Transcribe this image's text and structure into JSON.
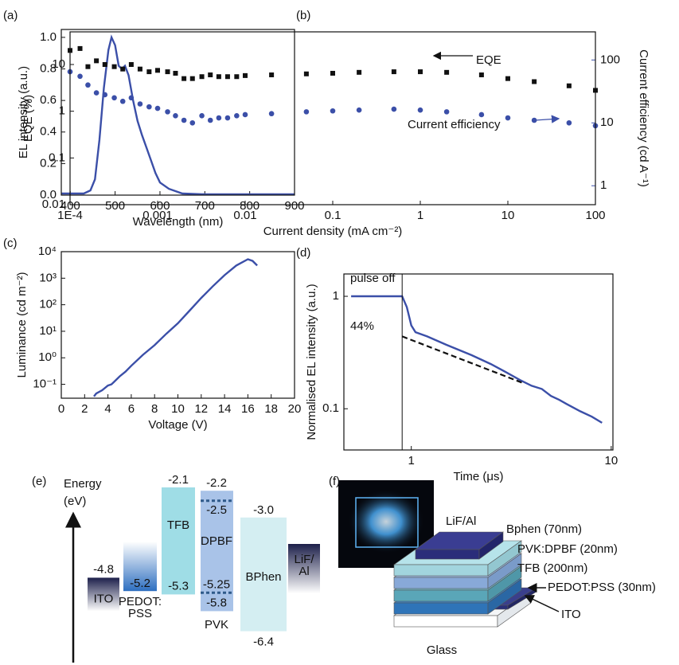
{
  "chart_data": [
    {
      "type": "line",
      "panel": "(a)",
      "xlabel": "Wavelength (nm)",
      "ylabel": "EL intensity (a.u.)",
      "x": [
        380,
        400,
        430,
        445,
        455,
        465,
        475,
        485,
        492,
        500,
        508,
        515,
        522,
        530,
        540,
        550,
        560,
        570,
        580,
        590,
        600,
        620,
        650,
        700,
        800,
        900
      ],
      "values": [
        0.01,
        0.01,
        0.01,
        0.03,
        0.1,
        0.35,
        0.68,
        0.92,
        1.0,
        0.95,
        0.82,
        0.8,
        0.82,
        0.76,
        0.6,
        0.47,
        0.38,
        0.3,
        0.22,
        0.14,
        0.08,
        0.04,
        0.01,
        0.005,
        0.005,
        0.005
      ],
      "color": "#3b4fa8",
      "xlim": [
        380,
        900
      ],
      "xticks": [
        400,
        500,
        600,
        700,
        800,
        900
      ],
      "ylim": [
        0,
        1.05
      ],
      "yticks": [
        {
          "value": 0,
          "label": "0.0"
        },
        0.2,
        0.4,
        0.6,
        0.8,
        {
          "value": 1,
          "label": "1.0"
        }
      ]
    },
    {
      "type": "scatter",
      "panel": "(b)",
      "xlabel": "Current density (mA cm⁻²)",
      "ylabel": "EQE (%)",
      "y2label": "Current efficiency (cd A⁻¹)",
      "x": [
        0.0001,
        0.00013,
        0.00016,
        0.0002,
        0.00025,
        0.00032,
        0.0004,
        0.0005,
        0.00063,
        0.0008,
        0.001,
        0.0013,
        0.0016,
        0.002,
        0.0025,
        0.0032,
        0.004,
        0.005,
        0.0063,
        0.008,
        0.01,
        0.02,
        0.05,
        0.1,
        0.2,
        0.5,
        1,
        2,
        5,
        10,
        20,
        50,
        100
      ],
      "series": [
        {
          "name": "EQE",
          "color": "#111111",
          "marker": "square",
          "values": [
            20,
            22,
            9,
            12,
            10,
            9,
            8,
            10,
            8,
            7,
            7.5,
            7,
            6.5,
            5,
            5,
            5.5,
            6,
            5.5,
            5.5,
            5.5,
            5.8,
            6,
            6.3,
            6.5,
            6.8,
            7,
            7,
            6.8,
            6,
            5,
            4.3,
            3.5,
            2.8
          ]
        },
        {
          "name": "Current efficiency",
          "color": "#3b4fa8",
          "marker": "circle",
          "axis": "y2",
          "values": [
            65,
            55,
            40,
            30,
            28,
            25,
            22,
            25,
            20,
            18,
            17,
            15,
            13,
            11,
            10,
            13,
            11,
            12,
            12,
            13,
            13.5,
            14,
            15,
            15.5,
            16,
            16.5,
            16,
            15,
            13.5,
            12,
            11,
            10,
            9
          ]
        }
      ],
      "xscale": "log",
      "xlim": [
        0.0001,
        100
      ],
      "xticks": [
        {
          "value": 0.0001,
          "label": "1E-4"
        },
        0.001,
        0.01,
        0.1,
        1,
        10,
        100
      ],
      "yscale": "log",
      "ylim": [
        0.01,
        50
      ],
      "yticks": [
        0.01,
        0.1,
        1,
        10
      ],
      "y2scale": "log",
      "y2lim": [
        0.5,
        280
      ],
      "y2ticks": [
        1,
        10,
        100
      ]
    },
    {
      "type": "line",
      "panel": "(c)",
      "xlabel": "Voltage (V)",
      "ylabel": "Luminance (cd m⁻²)",
      "x": [
        2.8,
        3,
        3.5,
        4,
        4.3,
        4.5,
        5,
        5.5,
        6,
        7,
        8,
        9,
        10,
        11,
        12,
        13,
        14,
        15,
        16,
        16.4,
        16.8
      ],
      "values": [
        0.035,
        0.045,
        0.06,
        0.09,
        0.1,
        0.12,
        0.2,
        0.3,
        0.5,
        1.3,
        3,
        8,
        20,
        60,
        180,
        500,
        1300,
        3000,
        5200,
        4500,
        3000
      ],
      "color": "#3b4fa8",
      "xlim": [
        0,
        20
      ],
      "xticks": [
        0,
        2,
        4,
        6,
        8,
        10,
        12,
        14,
        16,
        18,
        20
      ],
      "yscale": "log",
      "ylim": [
        0.03,
        10000
      ],
      "yticks": [
        {
          "value": 0.1,
          "label": "10⁻¹"
        },
        {
          "value": 1,
          "label": "10⁰"
        },
        {
          "value": 10,
          "label": "10¹"
        },
        {
          "value": 100,
          "label": "10²"
        },
        {
          "value": 1000,
          "label": "10³"
        },
        {
          "value": 10000,
          "label": "10⁴"
        }
      ]
    },
    {
      "type": "line",
      "panel": "(d)",
      "xlabel": "Time (μs)",
      "ylabel": "Normalised EL intensity (a.u.)",
      "series": [
        {
          "color": "#3b4fa8",
          "x": [
            0.5,
            0.9,
            0.95,
            1.0,
            1.05,
            1.2,
            1.5,
            2,
            2.5,
            3,
            3.5,
            4,
            4.5,
            5,
            5.5,
            6,
            7,
            8,
            9
          ],
          "values": [
            1,
            1,
            0.8,
            0.55,
            0.48,
            0.44,
            0.37,
            0.3,
            0.25,
            0.21,
            0.18,
            0.16,
            0.15,
            0.13,
            0.12,
            0.11,
            0.095,
            0.085,
            0.075
          ]
        },
        {
          "color": "#111111",
          "dash": true,
          "x": [
            0.9,
            3.6
          ],
          "values": [
            0.44,
            0.17
          ]
        }
      ],
      "annotations": [
        "pulse off",
        "44%"
      ],
      "vline": 0.9,
      "xscale": "log",
      "xlim": [
        0.46,
        10.2
      ],
      "xticks": [
        1,
        10
      ],
      "yscale": "log",
      "ylim": [
        0.043,
        1.58
      ],
      "yticks": [
        0.1,
        1
      ]
    }
  ],
  "energy_diagram": {
    "panel": "(e)",
    "axis_label": [
      "Energy",
      "(eV)"
    ],
    "layers": [
      {
        "name": [
          "ITO"
        ],
        "levels": [
          -4.8
        ]
      },
      {
        "name": [
          "PEDOT:",
          "PSS"
        ],
        "levels": [
          -5.2
        ]
      },
      {
        "name": [
          "TFB"
        ],
        "levels": [
          -2.1,
          -5.3
        ]
      },
      {
        "name": [
          "PVK"
        ],
        "levels": [
          -2.2,
          -5.8
        ]
      },
      {
        "name": [
          "DPBF"
        ],
        "levels": [
          -2.5,
          -5.25
        ]
      },
      {
        "name": [
          "BPhen"
        ],
        "levels": [
          {
            "value": -3,
            "label": "-3.0"
          },
          -6.4
        ]
      },
      {
        "name": [
          "LiF/",
          "Al"
        ]
      }
    ]
  },
  "device_diagram": {
    "panel": "(f)",
    "labels": [
      "LiF/Al",
      "Bphen (70nm)",
      "PVK:DPBF (20nm)",
      "TFB (200nm)",
      "PEDOT:PSS (30nm)",
      "ITO",
      "Glass"
    ]
  }
}
